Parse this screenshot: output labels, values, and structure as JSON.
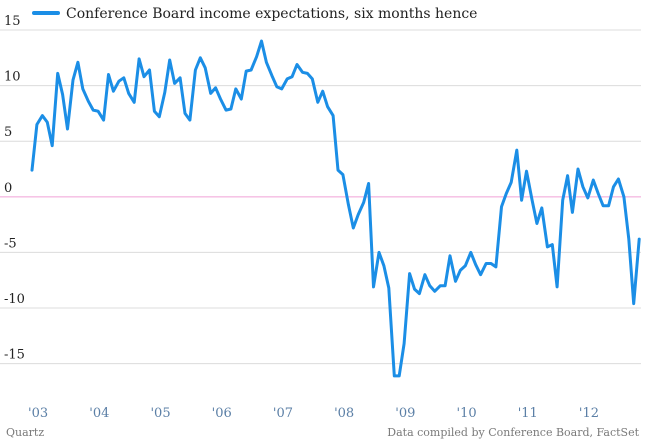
{
  "colors": {
    "series": "#1b8ee6",
    "zero_line": "#f0a0d8",
    "grid": "#dcdcdc",
    "x_tick_text": "#5b7fa6"
  },
  "footer": {
    "left": "Quartz",
    "right": "Data compiled by Conference Board, FactSet"
  },
  "chart_data": {
    "type": "line",
    "title": "",
    "xlabel": "",
    "ylabel": "",
    "x_range": [
      2003.0,
      2012.95
    ],
    "ylim": [
      -18,
      15
    ],
    "y_ticks": [
      15,
      10,
      5,
      0,
      -5,
      -10,
      -15
    ],
    "y_tick_labels": [
      "15",
      "10",
      "5",
      "0",
      "-5",
      "-10",
      "-15"
    ],
    "x_ticks": [
      2003.1,
      2004.1,
      2005.1,
      2006.1,
      2007.1,
      2008.1,
      2009.1,
      2010.1,
      2011.1,
      2012.1
    ],
    "x_tick_labels": [
      "'03",
      "'04",
      "'05",
      "'06",
      "'07",
      "'08",
      "'09",
      "'10",
      "'11",
      "'12"
    ],
    "zero_line": true,
    "grid": "horizontal",
    "legend": "top-left",
    "series": [
      {
        "name": "Conference Board income expectations, six months hence",
        "x": [
          2003.0,
          2003.08,
          2003.17,
          2003.25,
          2003.33,
          2003.42,
          2003.5,
          2003.58,
          2003.67,
          2003.75,
          2003.83,
          2003.92,
          2004.0,
          2004.08,
          2004.17,
          2004.25,
          2004.33,
          2004.42,
          2004.5,
          2004.58,
          2004.67,
          2004.75,
          2004.83,
          2004.92,
          2005.0,
          2005.08,
          2005.17,
          2005.25,
          2005.33,
          2005.42,
          2005.5,
          2005.58,
          2005.67,
          2005.75,
          2005.83,
          2005.92,
          2006.0,
          2006.08,
          2006.17,
          2006.25,
          2006.33,
          2006.42,
          2006.5,
          2006.58,
          2006.67,
          2006.75,
          2006.83,
          2006.92,
          2007.0,
          2007.08,
          2007.17,
          2007.25,
          2007.33,
          2007.42,
          2007.5,
          2007.58,
          2007.67,
          2007.75,
          2007.83,
          2007.92,
          2008.0,
          2008.08,
          2008.17,
          2008.25,
          2008.33,
          2008.42,
          2008.5,
          2008.58,
          2008.67,
          2008.75,
          2008.83,
          2008.92,
          2009.0,
          2009.08,
          2009.17,
          2009.25,
          2009.33,
          2009.42,
          2009.5,
          2009.58,
          2009.67,
          2009.75,
          2009.83,
          2009.92,
          2010.0,
          2010.08,
          2010.17,
          2010.25,
          2010.33,
          2010.42,
          2010.5,
          2010.58,
          2010.67,
          2010.75,
          2010.83,
          2010.92,
          2011.0,
          2011.08,
          2011.17,
          2011.25,
          2011.33,
          2011.42,
          2011.5,
          2011.58,
          2011.67,
          2011.75,
          2011.83,
          2011.92,
          2012.0,
          2012.08,
          2012.17,
          2012.25,
          2012.33,
          2012.42,
          2012.5,
          2012.58,
          2012.67,
          2012.75,
          2012.83,
          2012.92
        ],
        "y": [
          2.4,
          6.5,
          7.3,
          6.7,
          4.6,
          11.1,
          9.2,
          6.1,
          10.5,
          12.1,
          9.7,
          8.6,
          7.8,
          7.7,
          6.9,
          11.0,
          9.5,
          10.4,
          10.7,
          9.3,
          8.5,
          12.4,
          10.8,
          11.4,
          7.7,
          7.2,
          9.4,
          12.3,
          10.2,
          10.7,
          7.5,
          6.9,
          11.4,
          12.5,
          11.6,
          9.3,
          9.8,
          8.8,
          7.8,
          7.9,
          9.7,
          8.8,
          11.3,
          11.4,
          12.6,
          14.0,
          12.1,
          10.9,
          9.9,
          9.7,
          10.6,
          10.8,
          11.9,
          11.2,
          11.1,
          10.6,
          8.5,
          9.5,
          8.1,
          7.3,
          2.4,
          2.0,
          -0.7,
          -2.8,
          -1.6,
          -0.5,
          1.2,
          -8.1,
          -5.0,
          -6.2,
          -8.2,
          -16.1,
          -16.1,
          -13.2,
          -6.9,
          -8.3,
          -8.7,
          -7.0,
          -8.0,
          -8.5,
          -8.0,
          -8.0,
          -5.3,
          -7.6,
          -6.6,
          -6.2,
          -5.0,
          -6.1,
          -7.0,
          -6.0,
          -6.0,
          -6.3,
          -0.9,
          0.3,
          1.3,
          4.2,
          -0.3,
          2.3,
          -0.3,
          -2.4,
          -1.0,
          -4.5,
          -4.3,
          -8.1,
          -0.3,
          1.9,
          -1.4,
          2.5,
          0.9,
          -0.1,
          1.5,
          0.3,
          -0.8,
          -0.8,
          0.9,
          1.6,
          0.0,
          -3.8,
          -9.6,
          -3.8
        ]
      }
    ]
  }
}
